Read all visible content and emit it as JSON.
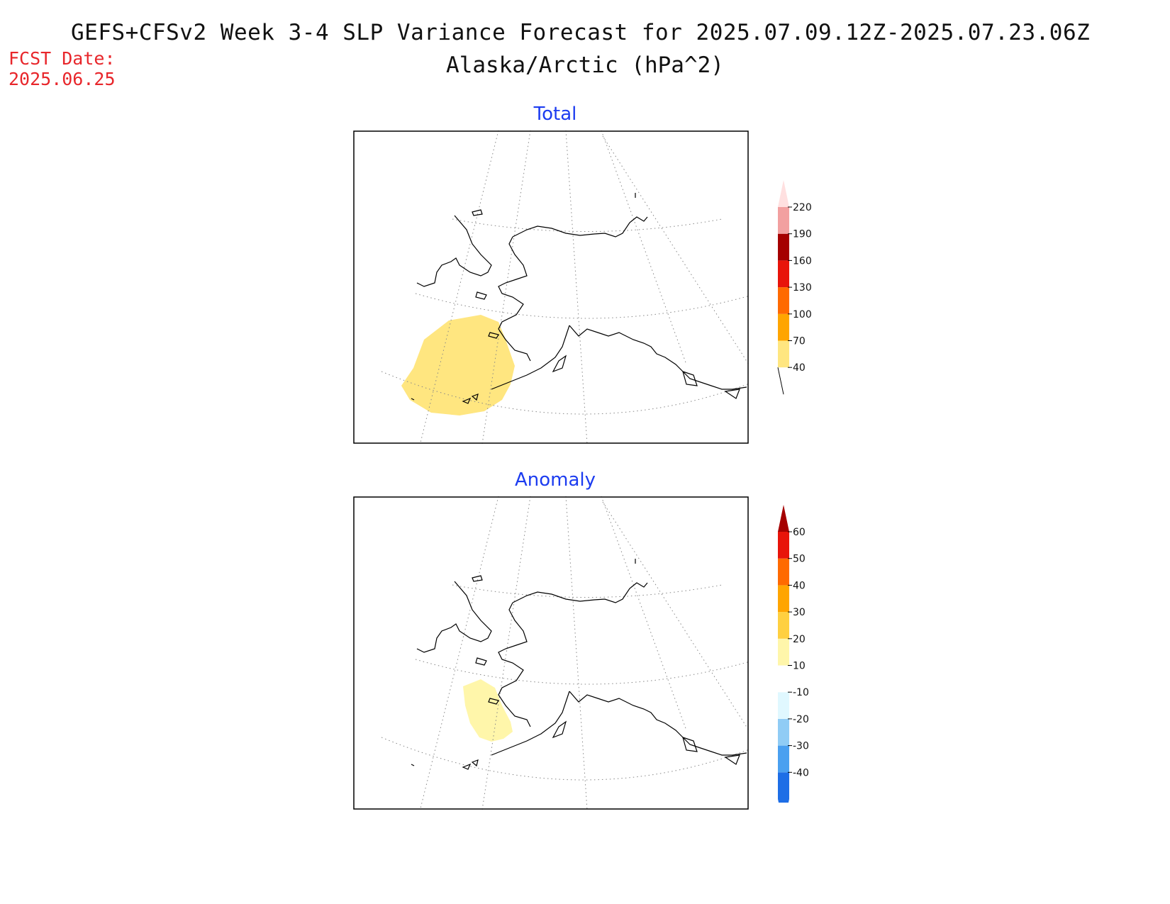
{
  "title": "GEFS+CFSv2 Week 3-4 SLP Variance Forecast for 2025.07.09.12Z-2025.07.23.06Z",
  "subtitle": "Alaska/Arctic (hPa^2)",
  "fcst_date": {
    "label": "FCST Date:",
    "value": "2025.06.25"
  },
  "panels": [
    {
      "title": "Total",
      "colorbar": {
        "labels": [
          "40",
          "70",
          "100",
          "130",
          "160",
          "190",
          "220"
        ],
        "colors": [
          "#ffe680",
          "#ffa500",
          "#ff6a00",
          "#e8140a",
          "#a50000",
          "#f2a0a0",
          "#ffe0e0"
        ],
        "low_extension": "none",
        "high_extension": "#ffe0e0"
      },
      "shading": {
        "level": "40-70",
        "color": "#ffe680"
      }
    },
    {
      "title": "Anomaly",
      "colorbar": {
        "labels": [
          "-40",
          "-30",
          "-20",
          "-10",
          "10",
          "20",
          "30",
          "40",
          "50",
          "60"
        ],
        "colors": [
          "#1e6ee6",
          "#4aa0f0",
          "#90ccf5",
          "#e0f8ff",
          "#ffffff",
          "#fff6aa",
          "#ffd040",
          "#ffa500",
          "#ff6a00",
          "#e8140a"
        ],
        "low_extension": "#1e6ee6",
        "high_extension": "#a50000"
      },
      "shading": {
        "level": "10-20",
        "color": "#fff6aa"
      }
    }
  ]
}
